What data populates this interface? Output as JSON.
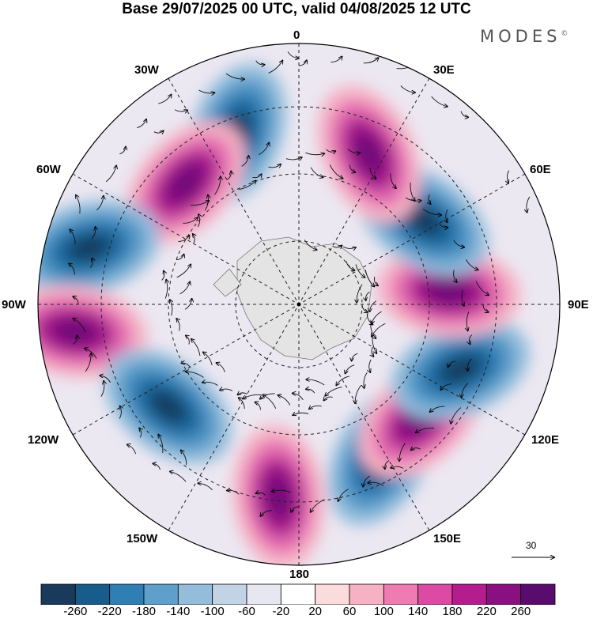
{
  "title": "Base 29/07/2025 00 UTC, valid 04/08/2025 12 UTC",
  "brand": {
    "name": "MODES",
    "mark": "©"
  },
  "map": {
    "projection": "south polar stereographic",
    "longitude_labels": {
      "top": "0",
      "upper_left": "30W",
      "upper_right": "30E",
      "mid_upper_left": "60W",
      "mid_upper_right": "60E",
      "left": "90W",
      "right": "90E",
      "mid_lower_left": "120W",
      "mid_lower_right": "120E",
      "lower_left": "150W",
      "lower_right": "150E",
      "bottom": "180"
    },
    "anomaly_centers": [
      {
        "name": "positive-0",
        "sign": "+",
        "lon": 6,
        "lat_note": "45S"
      },
      {
        "name": "negative-0",
        "sign": "-",
        "lon": -28,
        "lat_note": "50S"
      },
      {
        "name": "positive-30E",
        "sign": "+",
        "lon": -47,
        "lat_note": "52S"
      },
      {
        "name": "negative-60E",
        "sign": "-",
        "lon": -68,
        "lat_note": "50S"
      },
      {
        "name": "positive-90E",
        "sign": "+",
        "lon": -95,
        "lat_note": "55S"
      },
      {
        "name": "negative-120E",
        "sign": "-",
        "lon": -124,
        "lat_note": "55S"
      },
      {
        "name": "positive-150E",
        "sign": "+",
        "lon": -155,
        "lat_note": "52S"
      },
      {
        "name": "negative-180",
        "sign": "-",
        "lon": 160,
        "lat_note": "48S"
      },
      {
        "name": "positive-135W",
        "sign": "+",
        "lon": 137,
        "lat_note": "52S"
      },
      {
        "name": "negative-105W",
        "sign": "-",
        "lon": 105,
        "lat_note": "40S"
      },
      {
        "name": "positive-75W",
        "sign": "+",
        "lon": 83,
        "lat_note": "38S"
      },
      {
        "name": "negative-45W",
        "sign": "-",
        "lon": 52,
        "lat_note": "52S"
      }
    ]
  },
  "vector_scale": {
    "label": "30"
  },
  "colorbar": {
    "ticks": [
      "-260",
      "-220",
      "-180",
      "-140",
      "-100",
      "-60",
      "-20",
      "20",
      "60",
      "100",
      "140",
      "180",
      "220",
      "260"
    ],
    "colors": [
      "#1a3a5c",
      "#175c8a",
      "#2f7fb4",
      "#5ea0cb",
      "#93bddb",
      "#c3d3e6",
      "#e7e7f2",
      "#ffffff",
      "#fbdcdc",
      "#f6b2c4",
      "#ee7cb2",
      "#dc4aa3",
      "#b51d8e",
      "#8a0f80",
      "#5a0c6e"
    ]
  }
}
